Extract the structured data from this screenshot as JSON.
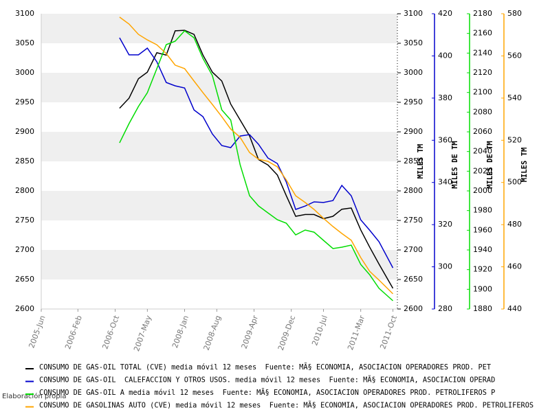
{
  "chart_data": {
    "type": "line",
    "x": [
      2006.83,
      2007.0,
      2007.17,
      2007.33,
      2007.5,
      2007.67,
      2007.83,
      2008.0,
      2008.17,
      2008.33,
      2008.5,
      2008.67,
      2008.83,
      2009.0,
      2009.17,
      2009.33,
      2009.5,
      2009.67,
      2009.83,
      2010.0,
      2010.17,
      2010.33,
      2010.5,
      2010.67,
      2010.83,
      2011.0,
      2011.17,
      2011.33,
      2011.5,
      2011.75
    ],
    "xlim": [
      2005.42,
      2011.83
    ],
    "xticks": [
      {
        "value": 2005.42,
        "label": "2005-Jun"
      },
      {
        "value": 2006.08,
        "label": "2006-Feb"
      },
      {
        "value": 2006.75,
        "label": "2006-Oct"
      },
      {
        "value": 2007.33,
        "label": "2007-May"
      },
      {
        "value": 2008.0,
        "label": "2008-Jan"
      },
      {
        "value": 2008.58,
        "label": "2008-Aug"
      },
      {
        "value": 2009.25,
        "label": "2009-Apr"
      },
      {
        "value": 2009.92,
        "label": "2009-Dec"
      },
      {
        "value": 2010.5,
        "label": "2010-Jul"
      },
      {
        "value": 2011.17,
        "label": "2011-Mar"
      },
      {
        "value": 2011.75,
        "label": "2011-Oct"
      }
    ],
    "ylim": [
      2600,
      3100
    ],
    "yticks": [
      2600,
      2650,
      2700,
      2750,
      2800,
      2850,
      2900,
      2950,
      3000,
      3050,
      3100
    ],
    "ylabel": "MILES TM",
    "y2lim": [
      280,
      420
    ],
    "y2ticks": [
      280,
      300,
      320,
      340,
      360,
      380,
      400,
      420
    ],
    "y2label": "MILES DE TM",
    "y3lim": [
      1880,
      2180
    ],
    "y3ticks": [
      1880,
      1900,
      1920,
      1940,
      1960,
      1980,
      2000,
      2020,
      2040,
      2060,
      2080,
      2100,
      2120,
      2140,
      2160,
      2180
    ],
    "y3label": "MILES DE TM",
    "y4lim": [
      440,
      580
    ],
    "y4ticks": [
      440,
      460,
      480,
      500,
      520,
      540,
      560,
      580
    ],
    "y4label": "MILES TM",
    "bands": true,
    "series": [
      {
        "name": "CONSUMO DE GAS-OIL TOTAL (CVE) media móvil 12 meses  Fuente: MÃ§ ECONOMIA, ASOCIACION OPERADORES PROD. PET",
        "color": "#000000",
        "axis": "y",
        "values": [
          2940,
          2957,
          2990,
          3001,
          3034,
          3030,
          3071,
          3072,
          3065,
          3030,
          3001,
          2986,
          2947,
          2920,
          2893,
          2853,
          2844,
          2827,
          2792,
          2757,
          2760,
          2760,
          2753,
          2757,
          2769,
          2771,
          2734,
          2705,
          2676,
          2635
        ]
      },
      {
        "name": "CONSUMO DE GAS-OIL  CALEFACCION Y OTROS USOS. media móvil 12 meses  Fuente: MÃ§ ECONOMIA, ASOCIACION OPERAD",
        "color": "#0000cc",
        "axis": "y2",
        "values": [
          408.6,
          400.5,
          400.5,
          403.7,
          397.2,
          387.4,
          385.8,
          384.8,
          374.4,
          371.2,
          363,
          357.5,
          356.5,
          362,
          362.7,
          358.1,
          351.6,
          349,
          340.2,
          327.2,
          328.8,
          330.8,
          330.5,
          331.4,
          338.6,
          333.7,
          322.3,
          317.4,
          311.9,
          299.5
        ]
      },
      {
        "name": "CONSUMO DE GAS-OIL A media móvil 12 meses  Fuente: MÃ§ ECONOMIA, ASOCIACION OPERADORES PROD. PETROLIFEROS P",
        "color": "#00dd00",
        "axis": "y3",
        "values": [
          2048.8,
          2068.4,
          2085.8,
          2099.8,
          2124.2,
          2148.6,
          2152.1,
          2162.6,
          2155.6,
          2134.6,
          2117.2,
          2082.3,
          2071.9,
          2026.5,
          1995.1,
          1984.7,
          1977.7,
          1970.7,
          1967.2,
          1955.3,
          1960.2,
          1958.1,
          1949.8,
          1941.4,
          1942.8,
          1944.9,
          1925.3,
          1914.9,
          1901,
          1888.4
        ]
      },
      {
        "name": "CONSUMO DE GASOLINAS AUTO (CVE) media móvil 12 meses  Fuente: MÃ§ ECONOMIA, ASOCIACION OPERADORES PROD. PETROLIFEROS",
        "color": "#ffa500",
        "axis": "y4",
        "values": [
          578.4,
          575.1,
          570.2,
          567.6,
          565.3,
          561.1,
          555.6,
          554,
          548.1,
          542.6,
          537,
          531.2,
          525.3,
          521.4,
          514.2,
          511,
          510,
          507.4,
          501.2,
          493.7,
          490.5,
          487.2,
          483,
          479.1,
          475.8,
          472.6,
          464.4,
          457.9,
          453.7,
          447.2
        ]
      }
    ],
    "note": "Elaboración propia"
  }
}
